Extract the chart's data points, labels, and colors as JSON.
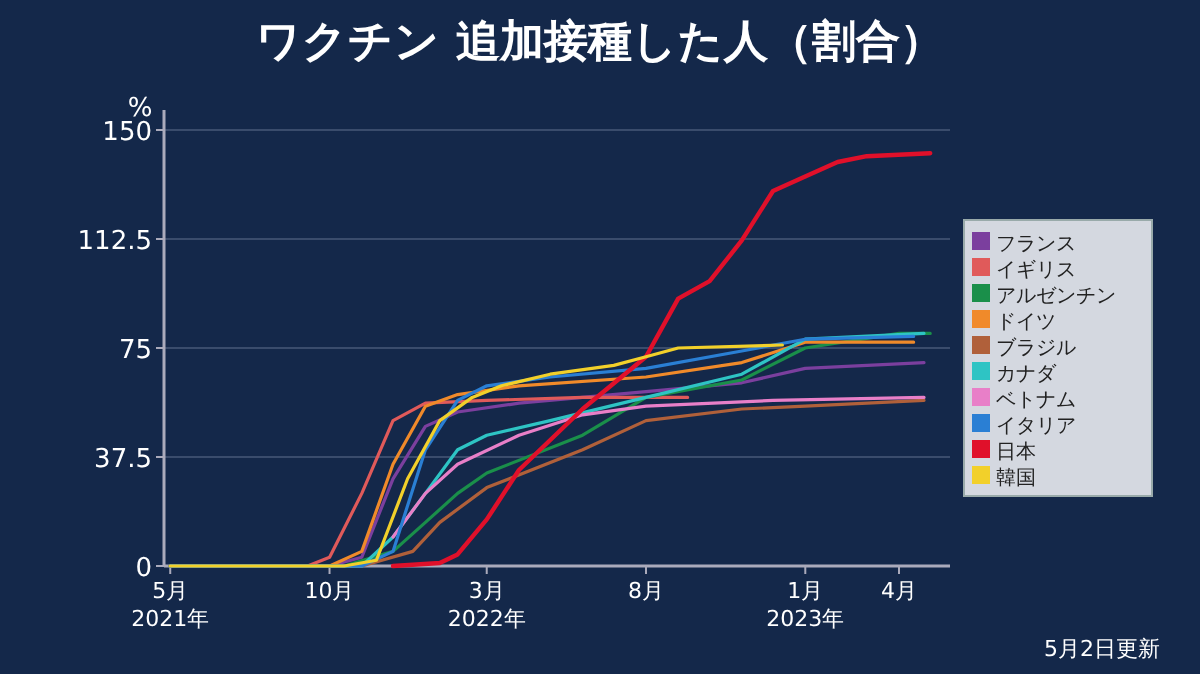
{
  "chart_data": {
    "type": "line",
    "title": "ワクチン 追加接種した人（割合）",
    "ylabel": "%",
    "annotations": [
      "5月2日更新"
    ],
    "xlim": [
      "2021-04-25",
      "2023-05-20"
    ],
    "ylim": [
      0,
      150
    ],
    "yticks": [
      0,
      37.5,
      75,
      112.5,
      150
    ],
    "xticks": [
      {
        "value": "2021-05-01",
        "label": "5月\n2021年"
      },
      {
        "value": "2021-10-01",
        "label": "10月"
      },
      {
        "value": "2022-03-01",
        "label": "3月\n2022年"
      },
      {
        "value": "2022-08-01",
        "label": "8月"
      },
      {
        "value": "2023-01-01",
        "label": "1月\n2023年"
      },
      {
        "value": "2023-04-01",
        "label": "4月"
      }
    ],
    "grid": "y",
    "legend": "right",
    "line_style": "solid",
    "marker": "none",
    "series": [
      {
        "name": "フランス",
        "color": "#7b3f9e",
        "x": [
          "2021-05-01",
          "2021-10-01",
          "2021-11-01",
          "2021-12-01",
          "2022-01-01",
          "2022-02-01",
          "2022-04-01",
          "2022-08-01",
          "2022-11-01",
          "2023-01-01",
          "2023-04-25"
        ],
        "values": [
          0,
          0,
          3,
          30,
          48,
          53,
          56,
          60,
          63,
          68,
          70
        ]
      },
      {
        "name": "イギリス",
        "color": "#e05a5a",
        "x": [
          "2021-05-01",
          "2021-09-10",
          "2021-10-01",
          "2021-11-01",
          "2021-12-01",
          "2022-01-01",
          "2022-03-01",
          "2022-06-01",
          "2022-09-10"
        ],
        "values": [
          0,
          0,
          3,
          25,
          50,
          56,
          57,
          58,
          58
        ]
      },
      {
        "name": "アルゼンチン",
        "color": "#1a8f4a",
        "x": [
          "2021-05-01",
          "2021-10-15",
          "2021-12-01",
          "2022-01-01",
          "2022-02-01",
          "2022-03-01",
          "2022-06-01",
          "2022-08-01",
          "2022-11-01",
          "2023-01-01",
          "2023-04-01",
          "2023-05-01"
        ],
        "values": [
          0,
          0,
          5,
          15,
          25,
          32,
          45,
          58,
          64,
          75,
          80,
          80
        ]
      },
      {
        "name": "ドイツ",
        "color": "#f08a2a",
        "x": [
          "2021-05-01",
          "2021-10-01",
          "2021-11-01",
          "2021-12-01",
          "2022-01-01",
          "2022-02-01",
          "2022-04-01",
          "2022-08-01",
          "2022-11-01",
          "2023-01-01",
          "2023-04-15"
        ],
        "values": [
          0,
          0,
          5,
          35,
          55,
          59,
          62,
          65,
          70,
          77,
          77
        ]
      },
      {
        "name": "ブラジル",
        "color": "#b0603a",
        "x": [
          "2021-05-01",
          "2021-11-01",
          "2021-12-20",
          "2022-01-15",
          "2022-03-01",
          "2022-06-01",
          "2022-08-01",
          "2022-11-01",
          "2023-01-01",
          "2023-04-25"
        ],
        "values": [
          0,
          0,
          5,
          15,
          27,
          40,
          50,
          54,
          55,
          57
        ]
      },
      {
        "name": "カナダ",
        "color": "#2ec4c4",
        "x": [
          "2021-05-01",
          "2021-11-01",
          "2021-12-01",
          "2022-01-01",
          "2022-02-01",
          "2022-03-01",
          "2022-05-01",
          "2022-08-01",
          "2022-11-01",
          "2023-01-01",
          "2023-04-25"
        ],
        "values": [
          0,
          0,
          10,
          25,
          40,
          45,
          50,
          58,
          66,
          78,
          80
        ]
      },
      {
        "name": "ベトナム",
        "color": "#e87fc8",
        "x": [
          "2021-12-01",
          "2022-01-01",
          "2022-02-01",
          "2022-04-01",
          "2022-06-01",
          "2022-08-01",
          "2022-12-01",
          "2023-04-25"
        ],
        "values": [
          10,
          25,
          35,
          45,
          52,
          55,
          57,
          58
        ]
      },
      {
        "name": "イタリア",
        "color": "#2a7fd4",
        "x": [
          "2021-05-01",
          "2021-11-01",
          "2021-12-01",
          "2022-01-01",
          "2022-02-01",
          "2022-03-01",
          "2022-05-01",
          "2022-08-01",
          "2022-11-01",
          "2023-01-01",
          "2023-04-15"
        ],
        "values": [
          0,
          0,
          5,
          40,
          57,
          62,
          65,
          68,
          74,
          78,
          79
        ]
      },
      {
        "name": "日本",
        "color": "#e0102a",
        "x": [
          "2021-12-01",
          "2022-01-15",
          "2022-02-01",
          "2022-03-01",
          "2022-04-01",
          "2022-06-01",
          "2022-08-01",
          "2022-09-01",
          "2022-10-01",
          "2022-11-01",
          "2022-12-01",
          "2023-01-01",
          "2023-02-01",
          "2023-03-01",
          "2023-05-01"
        ],
        "values": [
          0,
          1,
          4,
          16,
          33,
          54,
          72,
          92,
          98,
          112,
          129,
          134,
          139,
          141,
          142
        ]
      },
      {
        "name": "韓国",
        "color": "#f2d02a",
        "x": [
          "2021-05-01",
          "2021-10-15",
          "2021-11-15",
          "2021-12-15",
          "2022-01-15",
          "2022-02-15",
          "2022-03-15",
          "2022-05-01",
          "2022-07-01",
          "2022-08-01",
          "2022-09-01",
          "2022-12-10"
        ],
        "values": [
          0,
          0,
          2,
          30,
          50,
          58,
          62,
          66,
          69,
          72,
          75,
          76
        ]
      }
    ]
  }
}
